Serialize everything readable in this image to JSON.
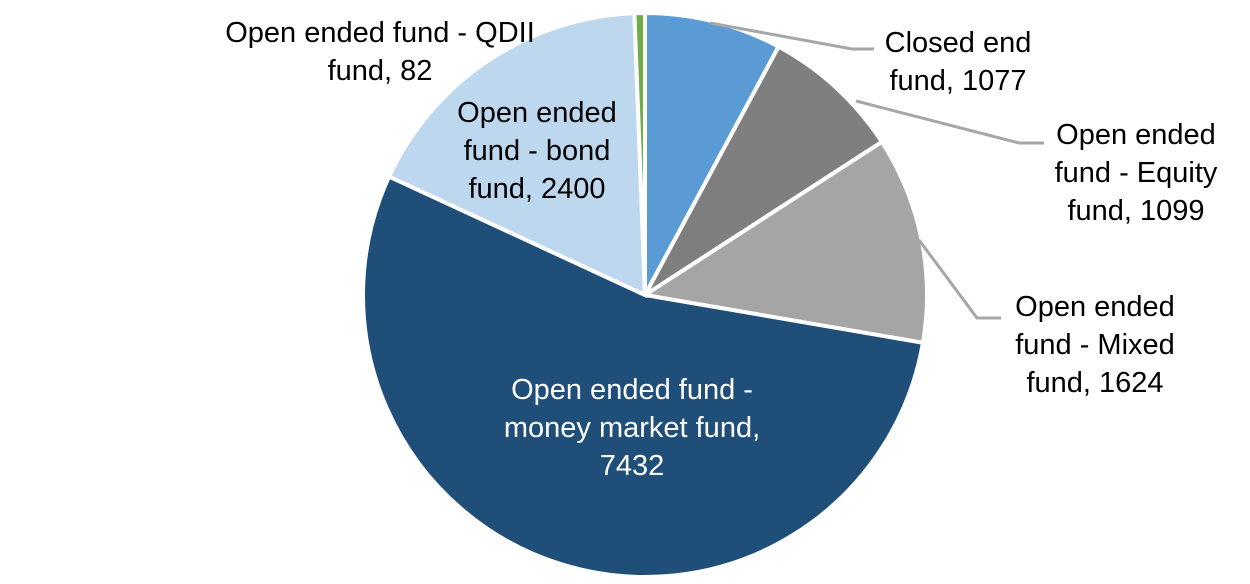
{
  "chart_data": {
    "type": "pie",
    "title": "",
    "legend_position": "none",
    "data_label_format": "category name, value",
    "direction": "clockwise",
    "start_angle_deg": 0,
    "total": 13714,
    "categories": [
      "Closed end fund",
      "Open ended fund - Equity fund",
      "Open ended fund - Mixed fund",
      "Open ended fund - money market fund",
      "Open ended fund - bond fund",
      "Open ended fund - QDII fund"
    ],
    "values": [
      1077,
      1099,
      1624,
      7432,
      2400,
      82
    ],
    "series": [
      {
        "label": "Closed end fund",
        "value": 1077,
        "color": "#5B9BD5"
      },
      {
        "label": "Open ended fund - Equity fund",
        "value": 1099,
        "color": "#7F7F7F"
      },
      {
        "label": "Open ended fund - Mixed fund",
        "value": 1624,
        "color": "#A5A5A5"
      },
      {
        "label": "Open ended fund - money market fund",
        "value": 7432,
        "color": "#1F4E79"
      },
      {
        "label": "Open ended fund - bond fund",
        "value": 2400,
        "color": "#BDD7EE"
      },
      {
        "label": "Open ended fund - QDII fund",
        "value": 82,
        "color": "#70AD47"
      }
    ],
    "slice_border_color": "#FFFFFF",
    "leader_line_color": "#A6A6A6",
    "label_text_color": "#000000",
    "inside_label_text_color": "#FFFFFF"
  },
  "labels": {
    "qdii": "Open ended fund - QDII\nfund, 82",
    "bond": "Open ended\nfund - bond\nfund, 2400",
    "closed_end": "Closed end\nfund, 1077",
    "equity": "Open ended\nfund - Equity\nfund, 1099",
    "mixed": "Open ended\nfund - Mixed\nfund, 1624",
    "money_market": "Open ended fund -\nmoney market fund,\n7432"
  }
}
